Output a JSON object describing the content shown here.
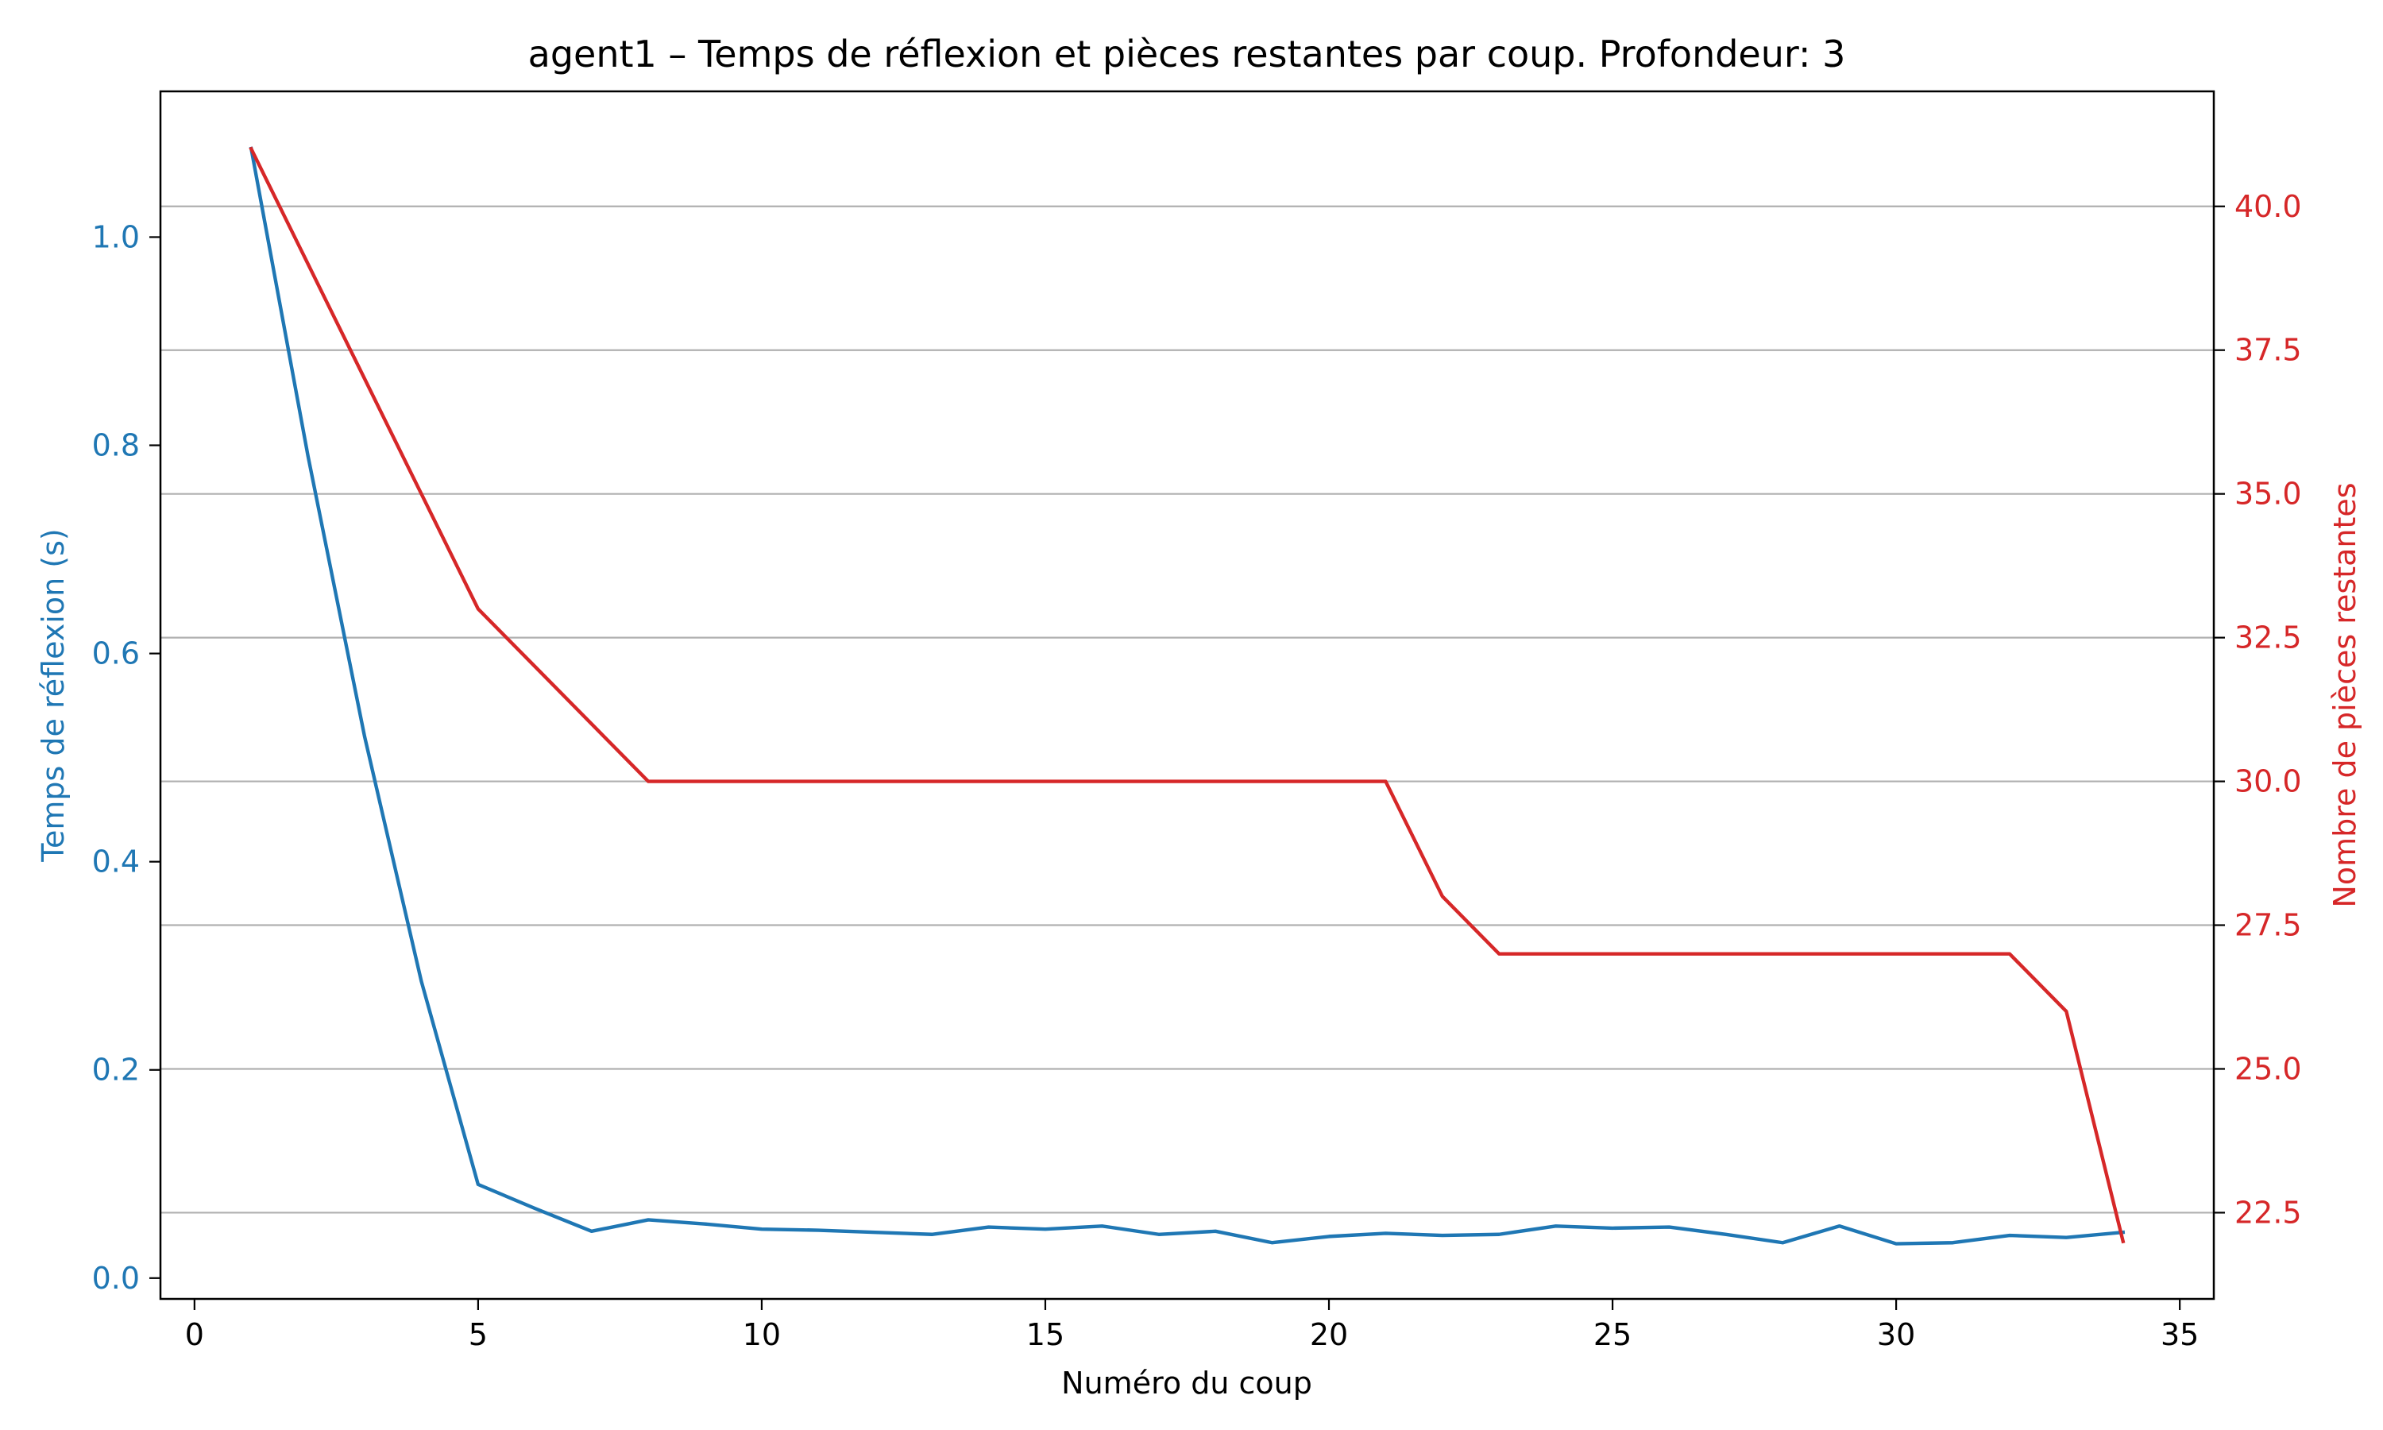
{
  "chart_data": {
    "type": "line",
    "title": "agent1 – Temps de réflexion et pièces restantes par coup. Profondeur: 3",
    "xlabel": "Numéro du coup",
    "ylabel_left": "Temps de réflexion (s)",
    "ylabel_right": "Nombre de pièces restantes",
    "xlim": [
      -0.6,
      35.6
    ],
    "ylim_left": [
      -0.02,
      1.14
    ],
    "ylim_right": [
      21.0,
      42.0
    ],
    "x_ticks": [
      "0",
      "5",
      "10",
      "15",
      "20",
      "25",
      "30",
      "35"
    ],
    "y_left_ticks": [
      "0.0",
      "0.2",
      "0.4",
      "0.6",
      "0.8",
      "1.0"
    ],
    "y_right_ticks": [
      "22.5",
      "25.0",
      "27.5",
      "30.0",
      "32.5",
      "35.0",
      "37.5",
      "40.0"
    ],
    "grid": "horizontal (right axis)",
    "colors": {
      "time": "#1f77b4",
      "pieces": "#d62728",
      "grid": "#b0b0b0",
      "axes": "#000000"
    },
    "x": [
      1,
      2,
      3,
      4,
      5,
      6,
      7,
      8,
      9,
      10,
      11,
      12,
      13,
      14,
      15,
      16,
      17,
      18,
      19,
      20,
      21,
      22,
      23,
      24,
      25,
      26,
      27,
      28,
      29,
      30,
      31,
      32,
      33,
      34
    ],
    "series": [
      {
        "axis": "left",
        "values": [
          1.085,
          0.79,
          0.52,
          0.285,
          0.09,
          0.067,
          0.045,
          0.056,
          0.052,
          0.047,
          0.046,
          0.044,
          0.042,
          0.049,
          0.047,
          0.05,
          0.042,
          0.045,
          0.034,
          0.04,
          0.043,
          0.041,
          0.042,
          0.05,
          0.048,
          0.049,
          0.042,
          0.034,
          0.05,
          0.033,
          0.034,
          0.041,
          0.039,
          0.044
        ]
      },
      {
        "axis": "right",
        "values": [
          41,
          39,
          37,
          35,
          33,
          32,
          31,
          30,
          30,
          30,
          30,
          30,
          30,
          30,
          30,
          30,
          30,
          30,
          30,
          30,
          30,
          28,
          27,
          27,
          27,
          27,
          27,
          27,
          27,
          27,
          27,
          27,
          26,
          22
        ]
      }
    ]
  }
}
